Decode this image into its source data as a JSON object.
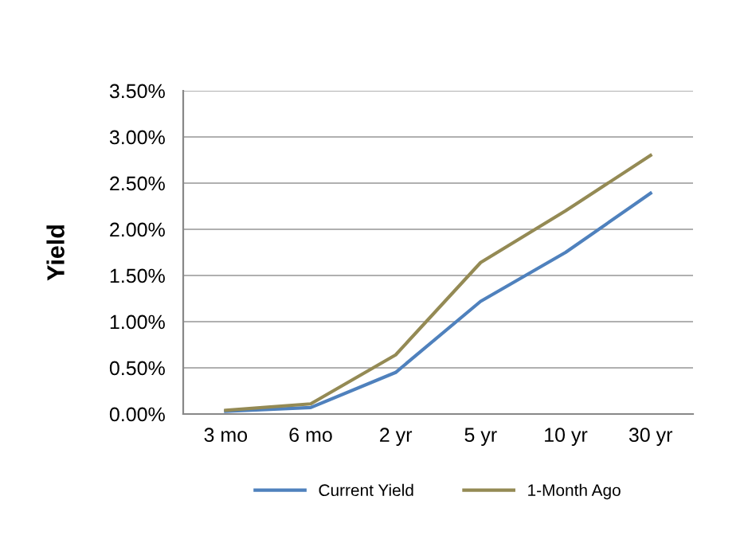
{
  "chart_data": {
    "type": "line",
    "ylabel": "Yield",
    "categories": [
      "3 mo",
      "6 mo",
      "2 yr",
      "5 yr",
      "10 yr",
      "30 yr"
    ],
    "series": [
      {
        "name": "Current Yield",
        "color": "#4f81bd",
        "values": [
          0.03,
          0.07,
          0.45,
          1.22,
          1.75,
          2.39
        ]
      },
      {
        "name": "1-Month Ago",
        "color": "#948a54",
        "values": [
          0.04,
          0.11,
          0.64,
          1.64,
          2.2,
          2.8
        ]
      }
    ],
    "ylim": [
      0,
      3.5
    ],
    "yticks": [
      {
        "value": 0,
        "label": "0.00%"
      },
      {
        "value": 0.5,
        "label": "0.50%"
      },
      {
        "value": 1,
        "label": "1.00%"
      },
      {
        "value": 1.5,
        "label": "1.50%"
      },
      {
        "value": 2,
        "label": "2.00%"
      },
      {
        "value": 2.5,
        "label": "2.50%"
      },
      {
        "value": 3,
        "label": "3.00%"
      },
      {
        "value": 3.5,
        "label": "3.50%"
      }
    ],
    "grid": "y",
    "legend": "bottom",
    "marker": "none",
    "line_style": "solid"
  }
}
